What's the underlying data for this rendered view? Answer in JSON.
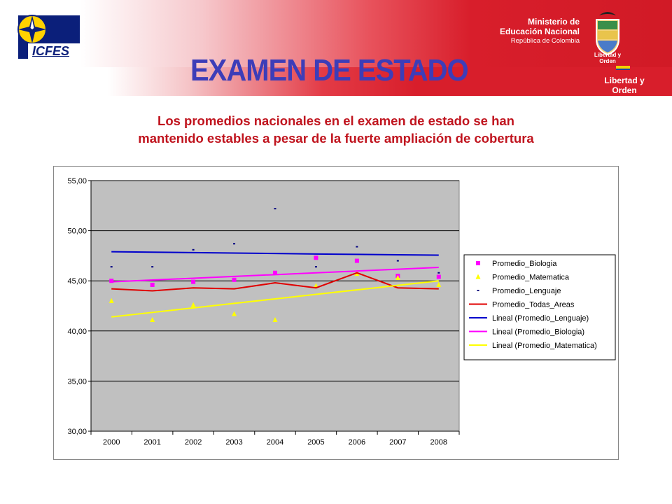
{
  "header": {
    "logo_text": "ICFES",
    "ministry_line1": "Ministerio de",
    "ministry_line2": "Educación Nacional",
    "ministry_line3": "República de Colombia",
    "shield_caption": "Libertad y Orden",
    "motto": "Libertad y Orden",
    "colors": {
      "banner_red": "#d81e2b",
      "title_blue": "#3d3db8",
      "subtitle_red": "#c0141e"
    }
  },
  "title": "EXAMEN DE ESTADO",
  "subtitle_line1": "Los promedios nacionales en el examen de estado se han",
  "subtitle_line2": "mantenido estables a pesar de la fuerte ampliación de cobertura",
  "chart_data": {
    "type": "line",
    "title": "",
    "xlabel": "",
    "ylabel": "",
    "categories": [
      "2000",
      "2001",
      "2002",
      "2003",
      "2004",
      "2005",
      "2006",
      "2007",
      "2008"
    ],
    "ylim": [
      30,
      55
    ],
    "yticks": [
      "30,00",
      "35,00",
      "40,00",
      "45,00",
      "50,00",
      "55,00"
    ],
    "grid": true,
    "plot_background": "#c0c0c0",
    "legend_position": "right",
    "series": [
      {
        "name": "Promedio_Biologia",
        "kind": "scatter",
        "marker": "square",
        "color": "#ff00ff",
        "values": [
          45.0,
          44.6,
          44.9,
          45.1,
          45.8,
          47.3,
          47.0,
          45.5,
          45.4
        ]
      },
      {
        "name": "Promedio_Matematica",
        "kind": "scatter",
        "marker": "triangle",
        "color": "#ffff00",
        "values": [
          43.0,
          41.1,
          42.6,
          41.7,
          41.1,
          44.5,
          45.7,
          45.3,
          44.6
        ]
      },
      {
        "name": "Promedio_Lenguaje",
        "kind": "scatter",
        "marker": "dash",
        "color": "#000080",
        "values": [
          46.4,
          46.4,
          48.1,
          48.7,
          52.2,
          46.4,
          48.4,
          47.0,
          45.8
        ]
      },
      {
        "name": "Promedio_Todas_Areas",
        "kind": "line",
        "color": "#e00000",
        "values": [
          44.2,
          44.0,
          44.3,
          44.2,
          44.8,
          44.3,
          45.8,
          44.3,
          44.2
        ]
      },
      {
        "name": "Lineal (Promedio_Lenguaje)",
        "kind": "line",
        "color": "#0000cc",
        "values": [
          47.9,
          47.86,
          47.82,
          47.77,
          47.73,
          47.68,
          47.64,
          47.6,
          47.56
        ]
      },
      {
        "name": "Lineal (Promedio_Biologia)",
        "kind": "line",
        "color": "#ff00ff",
        "values": [
          44.9,
          45.08,
          45.26,
          45.44,
          45.62,
          45.8,
          45.98,
          46.16,
          46.34
        ]
      },
      {
        "name": "Lineal (Promedio_Matematica)",
        "kind": "line",
        "color": "#ffff00",
        "values": [
          41.4,
          41.85,
          42.3,
          42.75,
          43.2,
          43.65,
          44.1,
          44.55,
          45.0
        ]
      }
    ]
  }
}
